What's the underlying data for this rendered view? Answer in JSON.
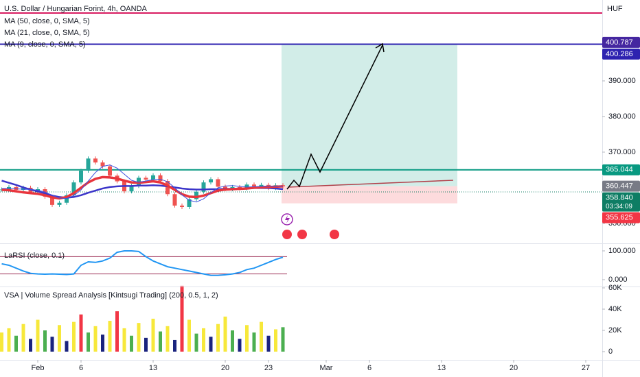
{
  "header": {
    "title": "U.S. Dollar / Hungarian Forint, 4h, OANDA"
  },
  "currency": "HUF",
  "countdown": "03:34:09",
  "price_tags": [
    {
      "value": 400.787,
      "color": "#4527a0"
    },
    {
      "value": 400.286,
      "color": "#2d22b0"
    },
    {
      "value": 365.044,
      "color": "#089981"
    },
    {
      "value": 360.447,
      "color": "#787b86"
    },
    {
      "value": 358.84,
      "label": "358.840",
      "color": "#0e7d64"
    },
    {
      "value": 355.625,
      "color": "#f23645"
    }
  ],
  "chart_data": [
    {
      "type": "candlestick",
      "x": [
        -2.5,
        -2,
        -1.5,
        -1,
        -0.5,
        0,
        0.5,
        1,
        1.5,
        2,
        2.5,
        3,
        3.5,
        4,
        4.5,
        5,
        5.5,
        6,
        6.5,
        7,
        7.5,
        8,
        8.5,
        9,
        9.5,
        10,
        10.5,
        11,
        11.5,
        12,
        12.5,
        13,
        13.5,
        14,
        14.5,
        15,
        15.5,
        16,
        16.5,
        17
      ],
      "values": [
        359.5,
        360.2,
        359.4,
        360.0,
        358.8,
        359.6,
        357.5,
        355.2,
        355.8,
        357.9,
        361.5,
        364.8,
        368.2,
        367.1,
        366.0,
        363.4,
        361.8,
        359.0,
        360.5,
        362.8,
        362.3,
        363.5,
        361.9,
        358.2,
        355.0,
        354.6,
        356.8,
        358.9,
        361.5,
        362.4,
        360.3,
        359.6,
        360.2,
        359.8,
        360.9,
        360.4,
        360.8,
        359.9,
        360.7,
        360.4
      ],
      "up_color": "#26a69a",
      "down_color": "#ef5350",
      "series": [
        {
          "name": "MA (50, close, 0, SMA, 5)",
          "color": "#3b35c9",
          "width": 2.5,
          "values": [
            362.0,
            361.4,
            360.8,
            360.1,
            359.5,
            359.0,
            358.4,
            357.8,
            357.4,
            357.2,
            357.4,
            357.9,
            358.6,
            359.2,
            359.8,
            360.2,
            360.4,
            360.5,
            360.5,
            360.6,
            360.6,
            360.7,
            360.6,
            360.4,
            360.1,
            359.8,
            359.6,
            359.5,
            359.5,
            359.6,
            359.6,
            359.7,
            359.7,
            359.8,
            359.8,
            359.9,
            359.9,
            359.9,
            359.8,
            359.6
          ]
        },
        {
          "name": "MA (21, close, 0, SMA, 5)",
          "color": "#e8353d",
          "width": 3.5,
          "values": [
            359.4,
            359.3,
            359.0,
            358.7,
            358.5,
            358.3,
            357.9,
            357.3,
            357.0,
            357.4,
            358.5,
            360.0,
            361.5,
            362.5,
            363.0,
            362.9,
            362.6,
            362.0,
            361.5,
            361.4,
            361.6,
            361.8,
            361.5,
            360.6,
            359.4,
            358.2,
            357.5,
            357.4,
            357.8,
            358.5,
            359.2,
            359.5,
            359.6,
            359.7,
            359.8,
            360.0,
            360.1,
            360.2,
            360.3,
            360.4
          ]
        },
        {
          "name": "MA (9, close, 0, SMA, 5)",
          "color": "#3f51e0",
          "width": 1,
          "values": [
            359.8,
            359.9,
            359.7,
            359.6,
            359.5,
            359.3,
            358.8,
            357.9,
            357.1,
            357.0,
            357.8,
            359.4,
            361.9,
            364.3,
            366.0,
            366.4,
            365.5,
            363.8,
            362.1,
            361.5,
            361.9,
            362.3,
            362.4,
            361.7,
            360.0,
            358.0,
            356.5,
            356.0,
            356.9,
            358.6,
            360.0,
            360.5,
            360.6,
            360.4,
            360.2,
            360.3,
            360.4,
            360.5,
            360.4,
            360.5
          ]
        }
      ],
      "ylim": [
        344.4,
        412.7
      ],
      "yticks": [
        {
          "value": 350,
          "label": "350.000"
        },
        {
          "value": 370,
          "label": "370.000"
        },
        {
          "value": 380,
          "label": "380.000"
        },
        {
          "value": 390,
          "label": "390.000"
        }
      ]
    },
    {
      "type": "line",
      "title": "LaRSI (close, 0.1)",
      "color": "#2196f3",
      "values": [
        55,
        50,
        40,
        30,
        22,
        20,
        19,
        20,
        19,
        18,
        20,
        50,
        62,
        60,
        65,
        75,
        95,
        100,
        100,
        98,
        80,
        65,
        55,
        45,
        40,
        35,
        30,
        25,
        20,
        15,
        15,
        17,
        20,
        25,
        35,
        40,
        50,
        60,
        70,
        78
      ],
      "levels": [
        80,
        20
      ],
      "level_color": "#a0345b",
      "ylim": [
        0,
        100
      ],
      "yticks": [
        {
          "value": 100,
          "label": "100.000"
        },
        {
          "value": 0,
          "label": "0.000"
        }
      ]
    },
    {
      "type": "bar",
      "title": "VSA | Volume Spread Analysis [Kintsugi Trading] (200, 0.5, 1, 2)",
      "values": [
        18000,
        22000,
        15000,
        26000,
        12000,
        30000,
        20000,
        14000,
        25000,
        10000,
        28000,
        35000,
        18000,
        24000,
        16000,
        29000,
        38000,
        22000,
        15000,
        27000,
        13000,
        31000,
        19000,
        24000,
        11000,
        62000,
        30000,
        17000,
        22000,
        14000,
        26000,
        33000,
        20000,
        12000,
        25000,
        18000,
        28000,
        15000,
        21000,
        23000
      ],
      "colors": [
        "#f7e83b",
        "#f7e83b",
        "#4caf50",
        "#f7e83b",
        "#1a237e",
        "#f7e83b",
        "#4caf50",
        "#1a237e",
        "#f7e83b",
        "#1a237e",
        "#f7e83b",
        "#f23645",
        "#4caf50",
        "#f7e83b",
        "#1a237e",
        "#f7e83b",
        "#f23645",
        "#f7e83b",
        "#4caf50",
        "#f7e83b",
        "#1a237e",
        "#f7e83b",
        "#4caf50",
        "#f7e83b",
        "#1a237e",
        "#f23645",
        "#f7e83b",
        "#4caf50",
        "#f7e83b",
        "#1a237e",
        "#f7e83b",
        "#f7e83b",
        "#4caf50",
        "#1a237e",
        "#f7e83b",
        "#4caf50",
        "#f7e83b",
        "#1a237e",
        "#f7e83b",
        "#4caf50"
      ],
      "ylim": [
        0,
        60000
      ],
      "yticks": [
        0,
        {
          "value": 20000,
          "label": "20K"
        },
        {
          "value": 40000,
          "label": "40K"
        },
        {
          "value": 60000,
          "label": "60K"
        }
      ],
      "xticks": [
        {
          "value": 0,
          "label": "Feb"
        },
        {
          "value": 3,
          "label": "6"
        },
        {
          "value": 8,
          "label": "13"
        },
        {
          "value": 13,
          "label": "20"
        },
        {
          "value": 16,
          "label": "23"
        },
        {
          "value": 20,
          "label": "Mar"
        },
        {
          "value": 23,
          "label": "6"
        },
        {
          "value": 28,
          "label": "13"
        },
        {
          "value": 33,
          "label": "20"
        },
        {
          "value": 38,
          "label": "27"
        }
      ]
    }
  ]
}
